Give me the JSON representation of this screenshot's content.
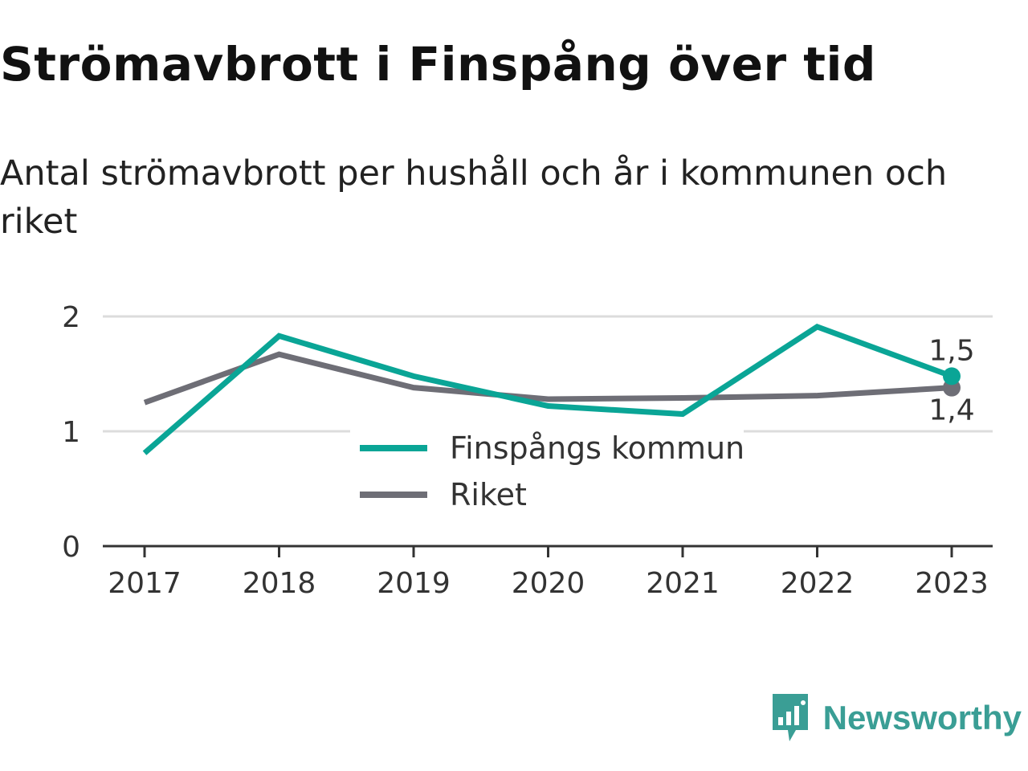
{
  "title": "Strömavbrott i Finspång över tid",
  "subtitle": "Antal strömavbrott per hushåll och år i kommunen och riket",
  "brand": {
    "name": "Newsworthy",
    "icon": "bar-chart-speech-bubble-icon",
    "color": "#3a9e95"
  },
  "chart_data": {
    "type": "line",
    "x": [
      "2017",
      "2018",
      "2019",
      "2020",
      "2021",
      "2022",
      "2023"
    ],
    "ylim": [
      0,
      2
    ],
    "yticks": [
      "0",
      "1",
      "2"
    ],
    "grid": true,
    "legend_position": "center",
    "series": [
      {
        "name": "Finspångs kommun",
        "color": "#0aa596",
        "values": [
          0.81,
          1.83,
          1.48,
          1.22,
          1.15,
          1.91,
          1.48
        ],
        "end_label": "1,5"
      },
      {
        "name": "Riket",
        "color": "#6e6e76",
        "values": [
          1.25,
          1.67,
          1.38,
          1.28,
          1.29,
          1.31,
          1.38
        ],
        "end_label": "1,4"
      }
    ]
  }
}
